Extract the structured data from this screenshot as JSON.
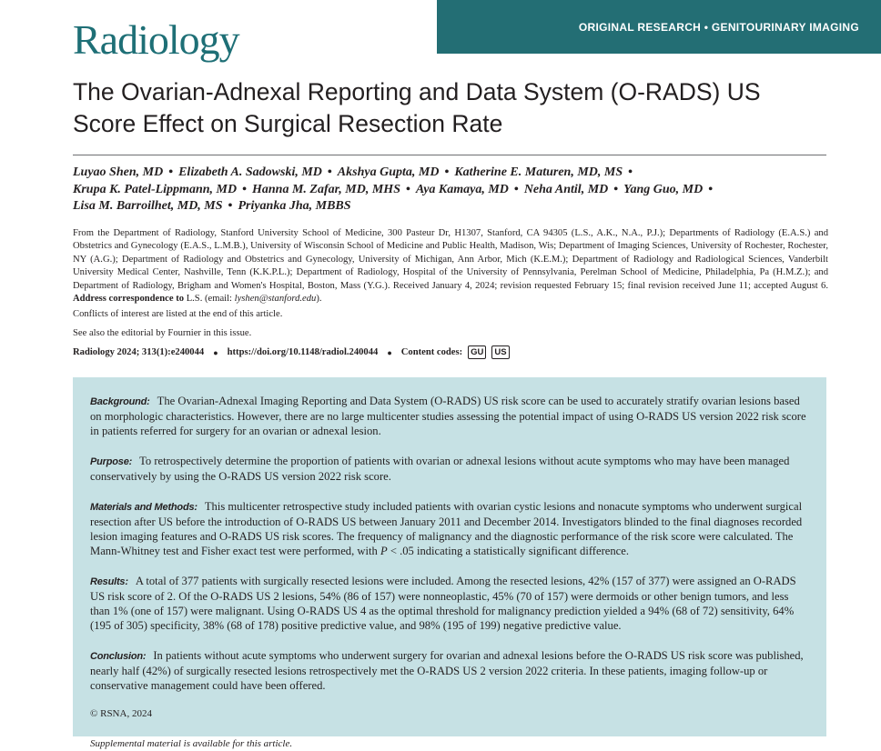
{
  "journal": {
    "name": "Radiology",
    "section_banner": "ORIGINAL RESEARCH • GENITOURINARY IMAGING"
  },
  "article": {
    "title": "The Ovarian-Adnexal Reporting and Data System (O-RADS) US Score Effect on Surgical Resection Rate",
    "authors": [
      "Luyao Shen, MD",
      "Elizabeth A. Sadowski, MD",
      "Akshya Gupta, MD",
      "Katherine E. Maturen, MD, MS",
      "Krupa K. Patel-Lippmann, MD",
      "Hanna M. Zafar, MD, MHS",
      "Aya Kamaya, MD",
      "Neha Antil, MD",
      "Yang Guo, MD",
      "Lisa M. Barroilhet, MD, MS",
      "Priyanka Jha, MBBS"
    ],
    "affiliations": "From the Department of Radiology, Stanford University School of Medicine, 300 Pasteur Dr, H1307, Stanford, CA 94305 (L.S., A.K., N.A., P.J.); Departments of Radiology (E.A.S.) and Obstetrics and Gynecology (E.A.S., L.M.B.), University of Wisconsin School of Medicine and Public Health, Madison, Wis; Department of Imaging Sciences, University of Rochester, Rochester, NY (A.G.); Department of Radiology and Obstetrics and Gynecology, University of Michigan, Ann Arbor, Mich (K.E.M.); Department of Radiology and Radiological Sciences, Vanderbilt University Medical Center, Nashville, Tenn (K.K.P.L.); Department of Radiology, Hospital of the University of Pennsylvania, Perelman School of Medicine, Philadelphia, Pa (H.M.Z.); and Department of Radiology, Brigham and Women's Hospital, Boston, Mass (Y.G.). Received January 4, 2024; revision requested February 15; final revision received June 11; accepted August 6.",
    "correspondence_label": "Address correspondence to",
    "correspondence_name": "L.S. (email:",
    "correspondence_email": "lyshen@stanford.edu",
    "correspondence_end": ").",
    "conflicts_note": "Conflicts of interest are listed at the end of this article.",
    "editorial_note": "See also the editorial by Fournier in this issue.",
    "citation": "Radiology 2024; 313(1):e240044",
    "doi": "https://doi.org/10.1148/radiol.240044",
    "content_codes_label": "Content codes:",
    "content_codes": [
      "GU",
      "US"
    ]
  },
  "abstract": {
    "background": {
      "heading": "Background:",
      "text": "The Ovarian-Adnexal Imaging Reporting and Data System (O-RADS) US risk score can be used to accurately stratify ovarian lesions based on morphologic characteristics. However, there are no large multicenter studies assessing the potential impact of using O-RADS US version 2022 risk score in patients referred for surgery for an ovarian or adnexal lesion."
    },
    "purpose": {
      "heading": "Purpose:",
      "text": "To retrospectively determine the proportion of patients with ovarian or adnexal lesions without acute symptoms who may have been managed conservatively by using the O-RADS US version 2022 risk score."
    },
    "methods": {
      "heading": "Materials and Methods:",
      "text": "This multicenter retrospective study included patients with ovarian cystic lesions and nonacute symptoms who underwent surgical resection after US before the introduction of O-RADS US between January 2011 and December 2014. Investigators blinded to the final diagnoses recorded lesion imaging features and O-RADS US risk scores. The frequency of malignancy and the diagnostic performance of the risk score were calculated. The Mann-Whitney test and Fisher exact test were performed, with",
      "p_symbol": "P",
      "text_end": "< .05 indicating a statistically significant difference."
    },
    "results": {
      "heading": "Results:",
      "text": "A total of 377 patients with surgically resected lesions were included. Among the resected lesions, 42% (157 of 377) were assigned an O-RADS US risk score of 2. Of the O-RADS US 2 lesions, 54% (86 of 157) were nonneoplastic, 45% (70 of 157) were dermoids or other benign tumors, and less than 1% (one of 157) were malignant. Using O-RADS US 4 as the optimal threshold for malignancy prediction yielded a 94% (68 of 72) sensitivity, 64% (195 of 305) specificity, 38% (68 of 178) positive predictive value, and 98% (195 of 199) negative predictive value."
    },
    "conclusion": {
      "heading": "Conclusion:",
      "text": "In patients without acute symptoms who underwent surgery for ovarian and adnexal lesions before the O-RADS US risk score was published, nearly half (42%) of surgically resected lesions retrospectively met the O-RADS US 2 version 2022 criteria. In these patients, imaging follow-up or conservative management could have been offered."
    },
    "copyright": "© RSNA, 2024",
    "supplemental": "Supplemental material is available for this article."
  },
  "colors": {
    "brand_teal": "#236e74",
    "logo_teal": "#1e6f76",
    "abstract_bg": "#c6e1e4"
  }
}
